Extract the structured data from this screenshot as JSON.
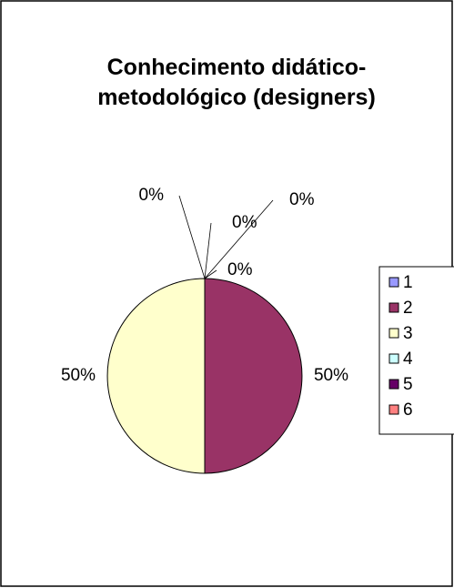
{
  "chart_data": {
    "type": "pie",
    "title": "Conhecimento didático-metodológico (designers)",
    "categories": [
      "1",
      "2",
      "3",
      "4",
      "5",
      "6"
    ],
    "values": [
      0,
      50,
      50,
      0,
      0,
      0
    ],
    "value_labels": [
      "0%",
      "50%",
      "50%",
      "0%",
      "0%",
      "0%"
    ],
    "colors": [
      "#9999ff",
      "#993366",
      "#ffffcc",
      "#ccffff",
      "#660066",
      "#ff8080"
    ],
    "legend": "right"
  }
}
